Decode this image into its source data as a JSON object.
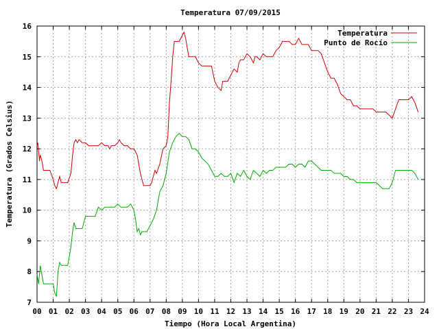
{
  "chart_data": {
    "type": "line",
    "title": "Temperatura 07/09/2015",
    "xlabel": "Tiempo (Hora Local Argentina)",
    "ylabel": "Temperatura (Grados Celsius)",
    "xlim": [
      0,
      24
    ],
    "ylim": [
      7,
      16
    ],
    "xticks": [
      "00",
      "01",
      "02",
      "03",
      "04",
      "05",
      "06",
      "07",
      "08",
      "09",
      "10",
      "11",
      "12",
      "13",
      "14",
      "15",
      "16",
      "17",
      "18",
      "19",
      "20",
      "21",
      "22",
      "23",
      "24"
    ],
    "yticks": [
      "7",
      "8",
      "9",
      "10",
      "11",
      "12",
      "13",
      "14",
      "15",
      "16"
    ],
    "grid": true,
    "legend_position": "top-right",
    "series": [
      {
        "name": "Temperatura",
        "color": "#cc0000",
        "x": [
          0.0,
          0.05,
          0.1,
          0.15,
          0.2,
          0.3,
          0.4,
          0.5,
          0.6,
          0.8,
          1.0,
          1.1,
          1.2,
          1.3,
          1.4,
          1.5,
          1.7,
          1.9,
          2.1,
          2.2,
          2.3,
          2.4,
          2.5,
          2.6,
          2.8,
          3.0,
          3.2,
          3.4,
          3.6,
          3.8,
          4.0,
          4.2,
          4.4,
          4.5,
          4.6,
          4.8,
          5.0,
          5.1,
          5.2,
          5.4,
          5.6,
          5.8,
          6.0,
          6.2,
          6.3,
          6.4,
          6.5,
          6.6,
          6.8,
          7.0,
          7.1,
          7.2,
          7.3,
          7.4,
          7.6,
          7.8,
          8.0,
          8.1,
          8.2,
          8.3,
          8.4,
          8.5,
          8.6,
          8.8,
          9.0,
          9.1,
          9.2,
          9.3,
          9.4,
          9.6,
          9.8,
          10.0,
          10.2,
          10.4,
          10.6,
          10.8,
          11.0,
          11.2,
          11.4,
          11.5,
          11.6,
          11.8,
          12.0,
          12.2,
          12.4,
          12.5,
          12.6,
          12.8,
          13.0,
          13.2,
          13.4,
          13.5,
          13.6,
          13.8,
          14.0,
          14.2,
          14.4,
          14.6,
          14.8,
          15.0,
          15.2,
          15.4,
          15.6,
          15.8,
          16.0,
          16.2,
          16.4,
          16.6,
          16.8,
          17.0,
          17.2,
          17.4,
          17.6,
          17.8,
          18.0,
          18.2,
          18.4,
          18.6,
          18.8,
          19.0,
          19.2,
          19.4,
          19.6,
          19.8,
          20.0,
          20.2,
          20.4,
          20.6,
          20.8,
          21.0,
          21.2,
          21.4,
          21.6,
          21.8,
          22.0,
          22.2,
          22.4,
          22.6,
          22.8,
          23.0,
          23.2,
          23.4,
          23.6
        ],
        "y": [
          12.1,
          12.2,
          11.9,
          11.6,
          11.8,
          11.6,
          11.3,
          11.3,
          11.3,
          11.3,
          11.0,
          10.8,
          10.7,
          10.9,
          11.1,
          10.9,
          10.9,
          10.9,
          11.2,
          11.8,
          12.2,
          12.3,
          12.2,
          12.3,
          12.2,
          12.2,
          12.1,
          12.1,
          12.1,
          12.1,
          12.2,
          12.1,
          12.1,
          12.0,
          12.1,
          12.1,
          12.2,
          12.3,
          12.2,
          12.1,
          12.1,
          12.0,
          12.0,
          11.8,
          11.5,
          11.2,
          11.0,
          10.8,
          10.8,
          10.8,
          10.9,
          11.1,
          11.3,
          11.2,
          11.5,
          12.0,
          12.1,
          12.4,
          13.5,
          14.2,
          15.0,
          15.5,
          15.5,
          15.5,
          15.7,
          15.8,
          15.6,
          15.3,
          15.0,
          15.0,
          15.0,
          14.8,
          14.7,
          14.7,
          14.7,
          14.7,
          14.2,
          14.0,
          13.9,
          14.2,
          14.2,
          14.2,
          14.4,
          14.6,
          14.5,
          14.8,
          14.9,
          14.9,
          15.1,
          15.0,
          14.8,
          15.0,
          15.0,
          14.9,
          15.1,
          15.0,
          15.0,
          15.0,
          15.2,
          15.3,
          15.5,
          15.5,
          15.5,
          15.4,
          15.4,
          15.6,
          15.4,
          15.4,
          15.4,
          15.2,
          15.2,
          15.2,
          15.1,
          14.8,
          14.5,
          14.3,
          14.3,
          14.1,
          13.8,
          13.7,
          13.6,
          13.6,
          13.4,
          13.4,
          13.3,
          13.3,
          13.3,
          13.3,
          13.3,
          13.2,
          13.2,
          13.2,
          13.2,
          13.1,
          13.0,
          13.3,
          13.6,
          13.6,
          13.6,
          13.6,
          13.7,
          13.5,
          13.2
        ]
      },
      {
        "name": "Punto de Rocío",
        "color": "#00aa00",
        "x": [
          0.0,
          0.1,
          0.2,
          0.3,
          0.4,
          0.5,
          0.6,
          0.8,
          1.0,
          1.1,
          1.2,
          1.3,
          1.4,
          1.5,
          1.7,
          1.9,
          2.0,
          2.1,
          2.2,
          2.3,
          2.4,
          2.5,
          2.6,
          2.8,
          3.0,
          3.2,
          3.4,
          3.6,
          3.8,
          4.0,
          4.2,
          4.4,
          4.6,
          4.8,
          5.0,
          5.2,
          5.4,
          5.6,
          5.8,
          6.0,
          6.1,
          6.2,
          6.3,
          6.4,
          6.5,
          6.6,
          6.8,
          7.0,
          7.2,
          7.4,
          7.6,
          7.8,
          8.0,
          8.2,
          8.4,
          8.6,
          8.8,
          9.0,
          9.2,
          9.4,
          9.6,
          9.8,
          10.0,
          10.2,
          10.4,
          10.6,
          10.8,
          11.0,
          11.2,
          11.4,
          11.6,
          11.8,
          12.0,
          12.2,
          12.4,
          12.6,
          12.8,
          13.0,
          13.2,
          13.4,
          13.6,
          13.8,
          14.0,
          14.2,
          14.4,
          14.6,
          14.8,
          15.0,
          15.2,
          15.4,
          15.6,
          15.8,
          16.0,
          16.2,
          16.4,
          16.6,
          16.8,
          17.0,
          17.2,
          17.4,
          17.6,
          17.8,
          18.0,
          18.2,
          18.4,
          18.6,
          18.8,
          19.0,
          19.2,
          19.4,
          19.6,
          19.8,
          20.0,
          20.2,
          20.4,
          20.6,
          20.8,
          21.0,
          21.2,
          21.4,
          21.6,
          21.8,
          22.0,
          22.2,
          22.4,
          22.6,
          22.8,
          23.0,
          23.2,
          23.4,
          23.6
        ],
        "y": [
          7.9,
          7.6,
          8.2,
          7.9,
          7.6,
          7.6,
          7.6,
          7.6,
          7.6,
          7.3,
          7.2,
          8.0,
          8.3,
          8.2,
          8.2,
          8.2,
          8.5,
          8.8,
          9.3,
          9.6,
          9.4,
          9.4,
          9.4,
          9.4,
          9.8,
          9.8,
          9.8,
          9.8,
          10.1,
          10.0,
          10.1,
          10.1,
          10.1,
          10.1,
          10.2,
          10.1,
          10.1,
          10.1,
          10.2,
          10.0,
          9.7,
          9.3,
          9.4,
          9.2,
          9.3,
          9.3,
          9.3,
          9.5,
          9.7,
          10.0,
          10.6,
          10.8,
          11.2,
          11.9,
          12.2,
          12.4,
          12.5,
          12.4,
          12.4,
          12.3,
          12.0,
          12.0,
          11.9,
          11.7,
          11.6,
          11.5,
          11.3,
          11.1,
          11.1,
          11.2,
          11.1,
          11.1,
          11.2,
          10.9,
          11.2,
          11.1,
          11.3,
          11.1,
          11.0,
          11.3,
          11.2,
          11.1,
          11.3,
          11.2,
          11.3,
          11.3,
          11.4,
          11.4,
          11.4,
          11.4,
          11.5,
          11.5,
          11.4,
          11.5,
          11.5,
          11.4,
          11.6,
          11.6,
          11.5,
          11.4,
          11.3,
          11.3,
          11.3,
          11.3,
          11.2,
          11.2,
          11.2,
          11.1,
          11.1,
          11.0,
          11.0,
          10.9,
          10.9,
          10.9,
          10.9,
          10.9,
          10.9,
          10.9,
          10.8,
          10.7,
          10.7,
          10.7,
          10.9,
          11.3,
          11.3,
          11.3,
          11.3,
          11.3,
          11.3,
          11.2,
          11.0
        ]
      }
    ]
  }
}
